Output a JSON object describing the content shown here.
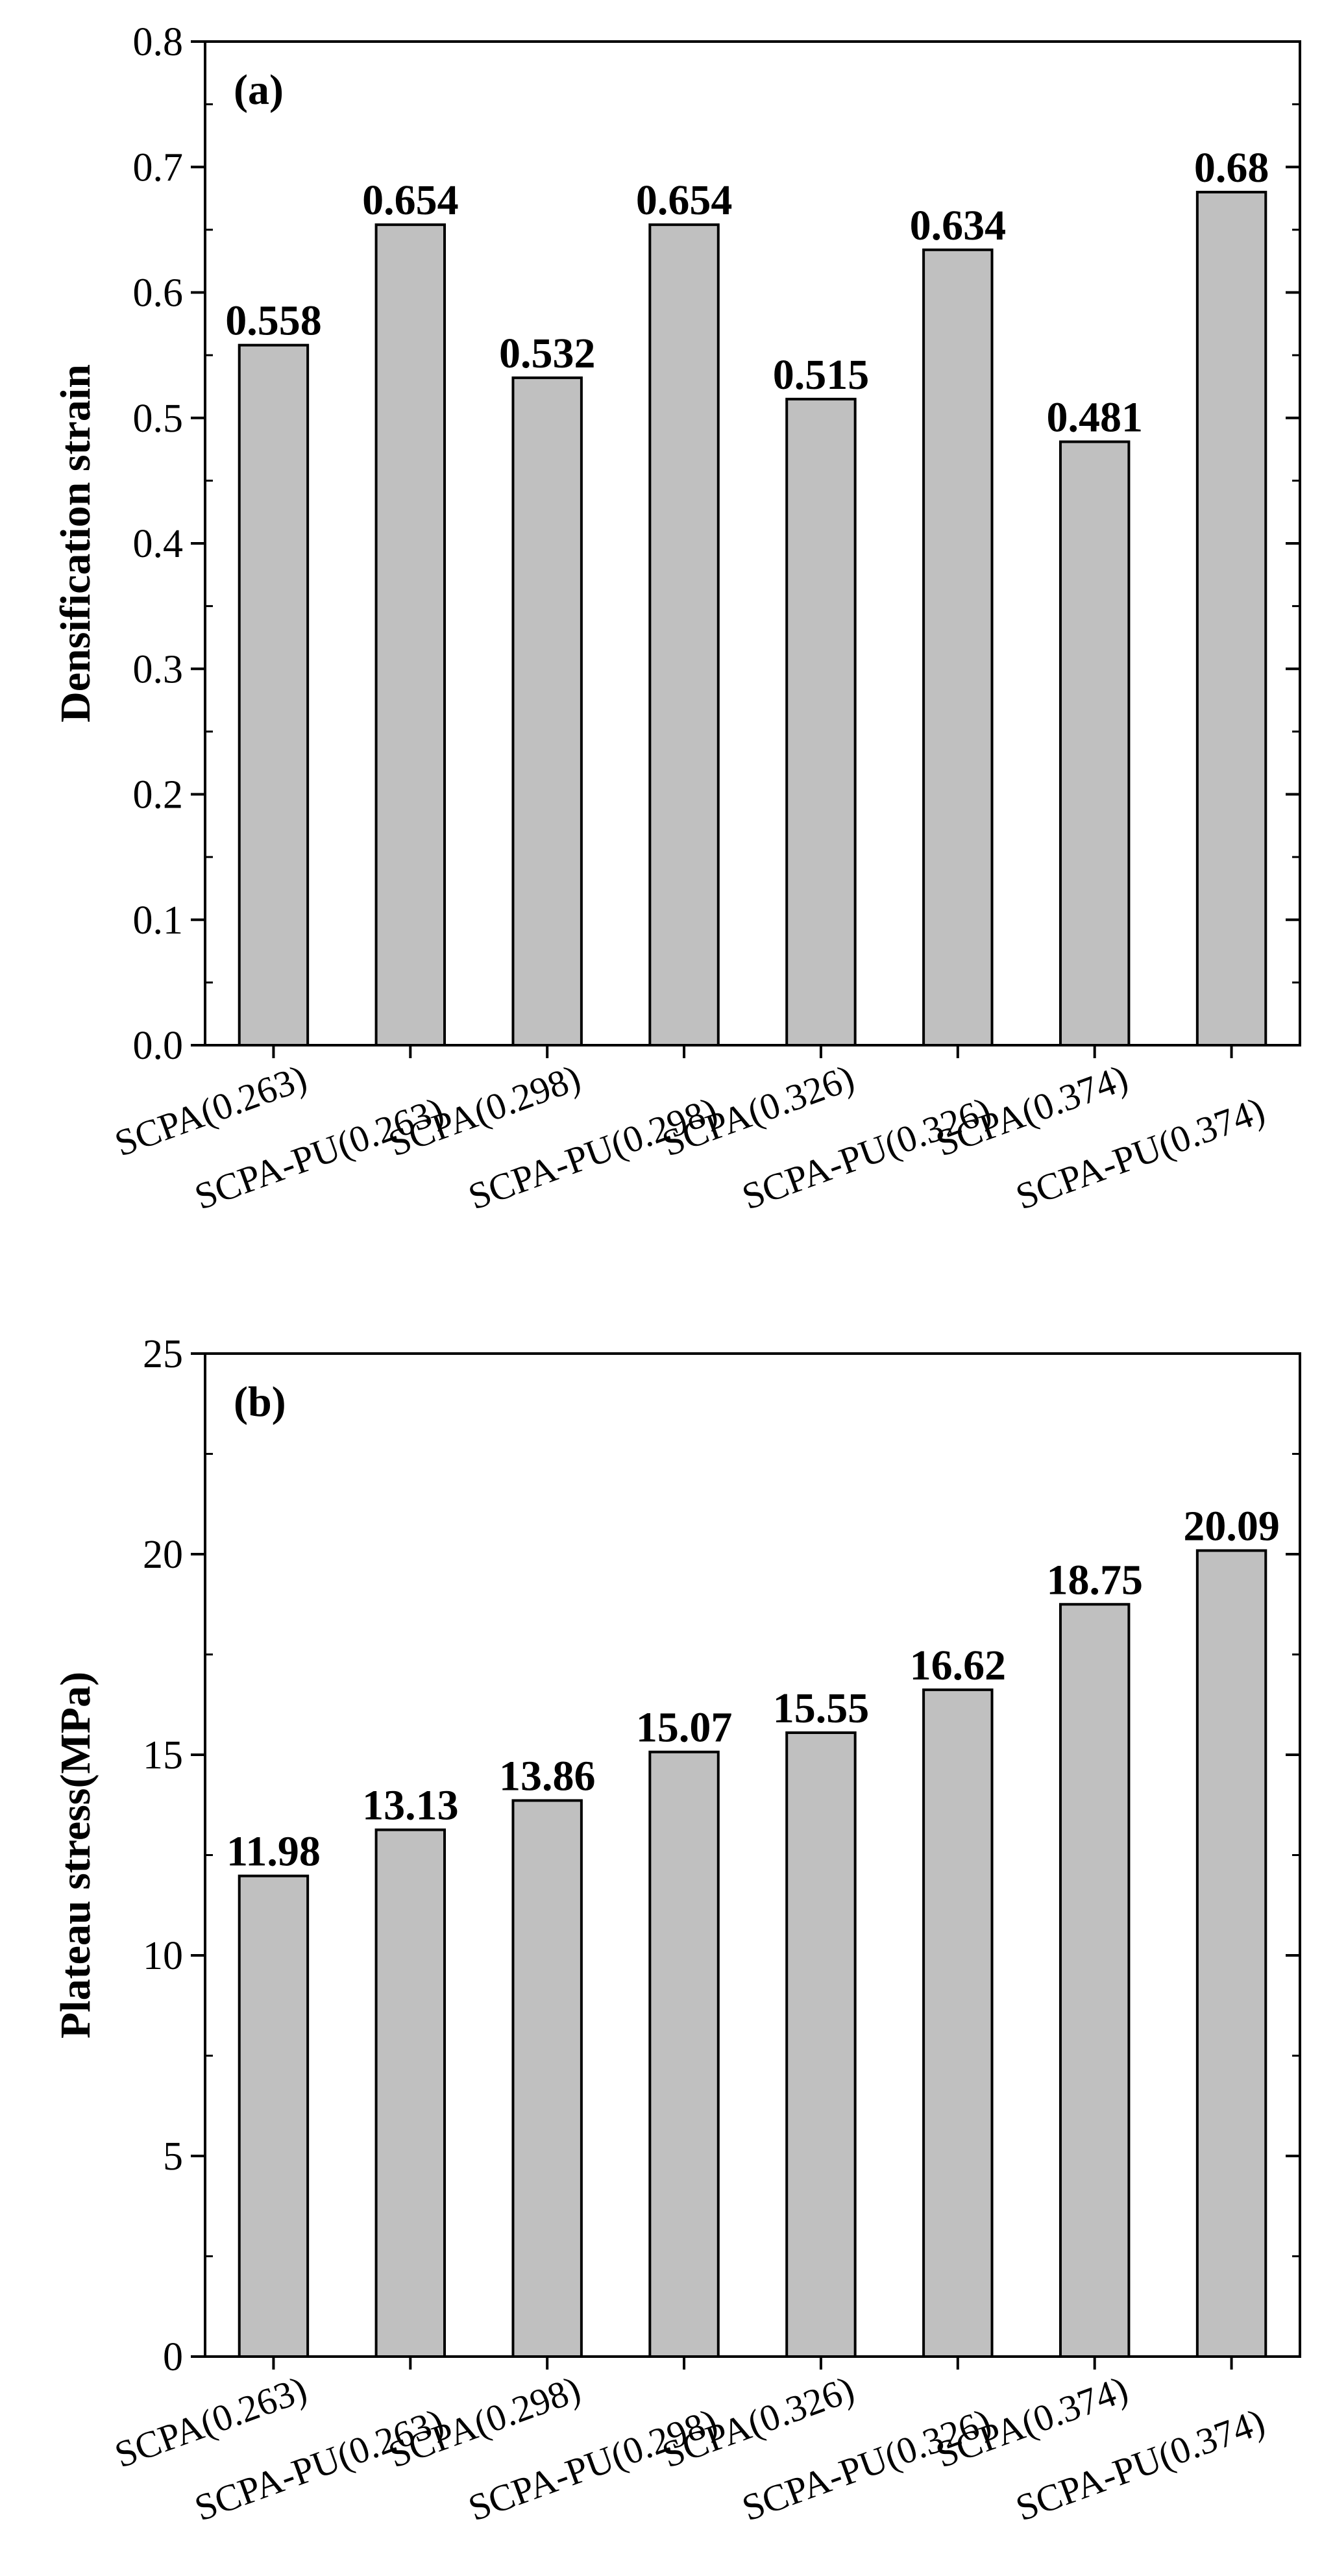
{
  "chart_data": [
    {
      "type": "bar",
      "panel_label": "(a)",
      "categories": [
        "SCPA(0.263)",
        "SCPA-PU(0.263)",
        "SCPA(0.298)",
        "SCPA-PU(0.298)",
        "SCPA(0.326)",
        "SCPA-PU(0.326)",
        "SCPA(0.374)",
        "SCPA-PU(0.374)"
      ],
      "values": [
        0.558,
        0.654,
        0.532,
        0.654,
        0.515,
        0.634,
        0.481,
        0.68
      ],
      "value_labels": [
        "0.558",
        "0.654",
        "0.532",
        "0.654",
        "0.515",
        "0.634",
        "0.481",
        "0.68"
      ],
      "ylabel": "Densification strain",
      "xlabel": "",
      "ylim": [
        0,
        0.8
      ],
      "yticks": [
        0,
        0.1,
        0.2,
        0.3,
        0.4,
        0.5,
        0.6,
        0.7,
        0.8
      ],
      "ytick_labels": [
        "0.0",
        "0.1",
        "0.2",
        "0.3",
        "0.4",
        "0.5",
        "0.6",
        "0.7",
        "0.8"
      ],
      "y_minor_step": 0.05,
      "bar_color": "#c0c0c0",
      "grid": false
    },
    {
      "type": "bar",
      "panel_label": "(b)",
      "categories": [
        "SCPA(0.263)",
        "SCPA-PU(0.263)",
        "SCPA(0.298)",
        "SCPA-PU(0.298)",
        "SCPA(0.326)",
        "SCPA-PU(0.326)",
        "SCPA(0.374)",
        "SCPA-PU(0.374)"
      ],
      "values": [
        11.98,
        13.13,
        13.86,
        15.07,
        15.55,
        16.62,
        18.75,
        20.09
      ],
      "value_labels": [
        "11.98",
        "13.13",
        "13.86",
        "15.07",
        "15.55",
        "16.62",
        "18.75",
        "20.09"
      ],
      "ylabel": "Plateau stress(MPa)",
      "xlabel": "",
      "ylim": [
        0,
        25
      ],
      "yticks": [
        0,
        5,
        10,
        15,
        20,
        25
      ],
      "ytick_labels": [
        "0",
        "5",
        "10",
        "15",
        "20",
        "25"
      ],
      "y_minor_step": 2.5,
      "bar_color": "#c0c0c0",
      "grid": false
    }
  ]
}
